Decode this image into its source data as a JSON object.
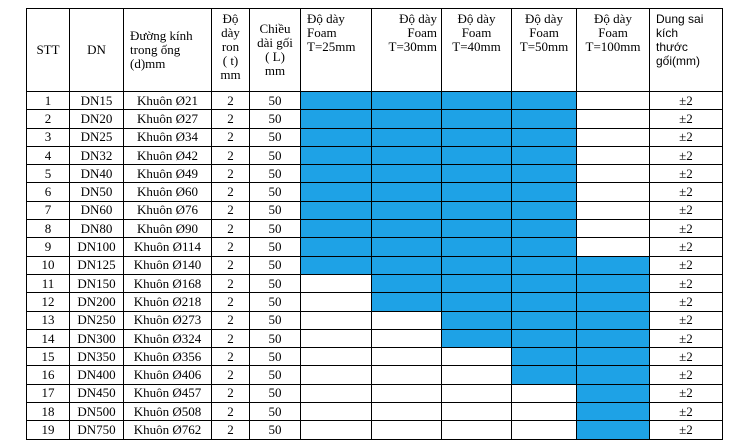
{
  "headers": {
    "stt": "STT",
    "dn": "DN",
    "diameter": [
      "Đường kính",
      "trong ống",
      "(d)mm"
    ],
    "ron": [
      "Độ",
      "dày",
      "ron",
      "( t)",
      "mm"
    ],
    "length": [
      "Chiều",
      "dài gối",
      "( L)",
      "mm"
    ],
    "t25": [
      "Độ dày",
      "Foam",
      "T=25mm"
    ],
    "t30": [
      "Độ dày",
      "Foam",
      "T=30mm"
    ],
    "t40": [
      "Độ dày",
      "Foam",
      "T=40mm"
    ],
    "t50": [
      "Độ dày",
      "Foam",
      "T=50mm"
    ],
    "t100": [
      "Độ dày",
      "Foam",
      "T=100mm"
    ],
    "tolerance": [
      "Dung sai",
      "kích",
      "thước",
      "gối(mm)"
    ]
  },
  "fill_color": "#1ea2e6",
  "rows": [
    {
      "stt": "1",
      "dn": "DN15",
      "mold": "Khuôn Ø21",
      "ron": "2",
      "length": "50",
      "foam": [
        1,
        1,
        1,
        1,
        0
      ],
      "tol": "±2"
    },
    {
      "stt": "2",
      "dn": "DN20",
      "mold": "Khuôn Ø27",
      "ron": "2",
      "length": "50",
      "foam": [
        1,
        1,
        1,
        1,
        0
      ],
      "tol": "±2"
    },
    {
      "stt": "3",
      "dn": "DN25",
      "mold": "Khuôn Ø34",
      "ron": "2",
      "length": "50",
      "foam": [
        1,
        1,
        1,
        1,
        0
      ],
      "tol": "±2"
    },
    {
      "stt": "4",
      "dn": "DN32",
      "mold": "Khuôn Ø42",
      "ron": "2",
      "length": "50",
      "foam": [
        1,
        1,
        1,
        1,
        0
      ],
      "tol": "±2"
    },
    {
      "stt": "5",
      "dn": "DN40",
      "mold": "Khuôn Ø49",
      "ron": "2",
      "length": "50",
      "foam": [
        1,
        1,
        1,
        1,
        0
      ],
      "tol": "±2"
    },
    {
      "stt": "6",
      "dn": "DN50",
      "mold": "Khuôn Ø60",
      "ron": "2",
      "length": "50",
      "foam": [
        1,
        1,
        1,
        1,
        0
      ],
      "tol": "±2"
    },
    {
      "stt": "7",
      "dn": "DN60",
      "mold": "Khuôn Ø76",
      "ron": "2",
      "length": "50",
      "foam": [
        1,
        1,
        1,
        1,
        0
      ],
      "tol": "±2"
    },
    {
      "stt": "8",
      "dn": "DN80",
      "mold": "Khuôn Ø90",
      "ron": "2",
      "length": "50",
      "foam": [
        1,
        1,
        1,
        1,
        0
      ],
      "tol": "±2"
    },
    {
      "stt": "9",
      "dn": "DN100",
      "mold": "Khuôn Ø114",
      "ron": "2",
      "length": "50",
      "foam": [
        1,
        1,
        1,
        1,
        0
      ],
      "tol": "±2"
    },
    {
      "stt": "10",
      "dn": "DN125",
      "mold": "Khuôn Ø140",
      "ron": "2",
      "length": "50",
      "foam": [
        1,
        1,
        1,
        1,
        1
      ],
      "tol": "±2"
    },
    {
      "stt": "11",
      "dn": "DN150",
      "mold": "Khuôn Ø168",
      "ron": "2",
      "length": "50",
      "foam": [
        0,
        1,
        1,
        1,
        1
      ],
      "tol": "±2"
    },
    {
      "stt": "12",
      "dn": "DN200",
      "mold": "Khuôn Ø218",
      "ron": "2",
      "length": "50",
      "foam": [
        0,
        1,
        1,
        1,
        1
      ],
      "tol": "±2"
    },
    {
      "stt": "13",
      "dn": "DN250",
      "mold": "Khuôn Ø273",
      "ron": "2",
      "length": "50",
      "foam": [
        0,
        0,
        1,
        1,
        1
      ],
      "tol": "±2"
    },
    {
      "stt": "14",
      "dn": "DN300",
      "mold": "Khuôn Ø324",
      "ron": "2",
      "length": "50",
      "foam": [
        0,
        0,
        1,
        1,
        1
      ],
      "tol": "±2"
    },
    {
      "stt": "15",
      "dn": "DN350",
      "mold": "Khuôn Ø356",
      "ron": "2",
      "length": "50",
      "foam": [
        0,
        0,
        0,
        1,
        1
      ],
      "tol": "±2"
    },
    {
      "stt": "16",
      "dn": "DN400",
      "mold": "Khuôn Ø406",
      "ron": "2",
      "length": "50",
      "foam": [
        0,
        0,
        0,
        1,
        1
      ],
      "tol": "±2"
    },
    {
      "stt": "17",
      "dn": "DN450",
      "mold": "Khuôn Ø457",
      "ron": "2",
      "length": "50",
      "foam": [
        0,
        0,
        0,
        0,
        1
      ],
      "tol": "±2"
    },
    {
      "stt": "18",
      "dn": "DN500",
      "mold": "Khuôn Ø508",
      "ron": "2",
      "length": "50",
      "foam": [
        0,
        0,
        0,
        0,
        1
      ],
      "tol": "±2"
    },
    {
      "stt": "19",
      "dn": "DN750",
      "mold": "Khuôn Ø762",
      "ron": "2",
      "length": "50",
      "foam": [
        0,
        0,
        0,
        0,
        1
      ],
      "tol": "±2"
    }
  ]
}
